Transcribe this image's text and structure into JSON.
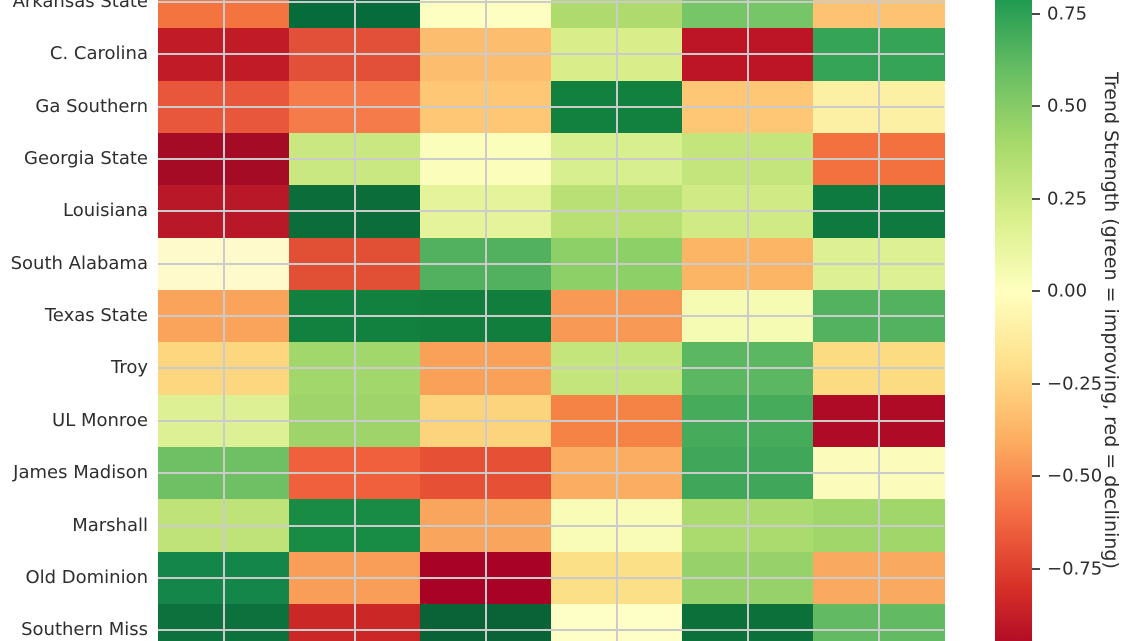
{
  "chart_data": {
    "type": "heatmap",
    "colormap": "RdYlGn",
    "vmin": -1,
    "vmax": 1,
    "rows_visible": [
      "Arkansas State",
      "C. Carolina",
      "Ga Southern",
      "Georgia State",
      "Louisiana",
      "South Alabama",
      "Texas State",
      "Troy",
      "UL Monroe",
      "James Madison",
      "Marshall",
      "Old Dominion",
      "Southern Miss"
    ],
    "n_cols": 6,
    "column_labels_visible": false,
    "values": [
      [
        -0.55,
        0.93,
        0.0,
        0.4,
        0.55,
        -0.28
      ],
      [
        -0.87,
        -0.67,
        -0.32,
        0.2,
        -0.88,
        0.75
      ],
      [
        -0.65,
        -0.52,
        -0.28,
        0.88,
        -0.28,
        -0.07
      ],
      [
        -0.96,
        0.28,
        0.02,
        0.2,
        0.3,
        -0.56
      ],
      [
        -0.88,
        0.93,
        0.12,
        0.36,
        0.24,
        0.9
      ],
      [
        -0.02,
        -0.67,
        0.65,
        0.48,
        -0.35,
        0.17
      ],
      [
        -0.4,
        0.88,
        0.88,
        -0.42,
        0.02,
        0.65
      ],
      [
        -0.18,
        0.42,
        -0.4,
        0.3,
        0.62,
        -0.16
      ],
      [
        0.17,
        0.43,
        -0.2,
        -0.5,
        0.7,
        -0.93
      ],
      [
        0.58,
        -0.6,
        -0.66,
        -0.4,
        0.73,
        0.02
      ],
      [
        0.3,
        0.85,
        -0.4,
        0.02,
        0.4,
        0.43
      ],
      [
        0.85,
        -0.4,
        -0.96,
        -0.15,
        0.45,
        -0.38
      ],
      [
        0.93,
        -0.82,
        0.98,
        0.0,
        0.93,
        0.62
      ]
    ],
    "cell_colors": [
      [
        "#f4743f",
        "#076c3b",
        "#fdfec2",
        "#aeda6e",
        "#76c566",
        "#fdc373"
      ],
      [
        "#c11b27",
        "#e25039",
        "#fcbe6e",
        "#d9ee8a",
        "#bd1526",
        "#35a456"
      ],
      [
        "#e8563b",
        "#f57c4a",
        "#fdc776",
        "#12813f",
        "#fdc776",
        "#fcf0a4"
      ],
      [
        "#a60b26",
        "#c9e881",
        "#fbfdba",
        "#d8ef90",
        "#c3e57c",
        "#f3713f"
      ],
      [
        "#b91828",
        "#0b6e3a",
        "#e5f49b",
        "#b9e074",
        "#d0ea86",
        "#0f7a40"
      ],
      [
        "#fefacb",
        "#e14f35",
        "#52b15f",
        "#8ed068",
        "#fbb564",
        "#ddf094"
      ],
      [
        "#f9a35b",
        "#12813f",
        "#117e3e",
        "#f89a56",
        "#f6fbb4",
        "#52b25f"
      ],
      [
        "#fcd77f",
        "#a2d86b",
        "#f9a159",
        "#c4e57c",
        "#5cb763",
        "#fbdc83"
      ],
      [
        "#ddf194",
        "#9ed46a",
        "#fbd47d",
        "#f58345",
        "#47ab5c",
        "#b00b26"
      ],
      [
        "#6fc065",
        "#f0603c",
        "#e65136",
        "#fbae62",
        "#3fa65a",
        "#fbfcbb"
      ],
      [
        "#c0e379",
        "#188b45",
        "#faa55d",
        "#f8fcb7",
        "#abda6e",
        "#a0d66a"
      ],
      [
        "#15864a",
        "#f99e58",
        "#a80326",
        "#fce088",
        "#97d169",
        "#faaa60"
      ],
      [
        "#0c713c",
        "#cc2727",
        "#0a6336",
        "#fdffc6",
        "#0b7039",
        "#62bb63"
      ]
    ],
    "colorbar": {
      "label": "Trend Strength (green = improving, red = declining)",
      "ticks": [
        "0.75",
        "0.50",
        "0.25",
        "0.00",
        "−0.25",
        "−0.50",
        "−0.75"
      ],
      "tick_values": [
        0.75,
        0.5,
        0.25,
        0.0,
        -0.25,
        -0.5,
        -0.75
      ],
      "gradient_stops": [
        {
          "v": 1.0,
          "color": "#006837"
        },
        {
          "v": 0.8,
          "color": "#1a9850"
        },
        {
          "v": 0.6,
          "color": "#66bd63"
        },
        {
          "v": 0.4,
          "color": "#a6d96a"
        },
        {
          "v": 0.2,
          "color": "#d9ef8b"
        },
        {
          "v": 0.0,
          "color": "#ffffbf"
        },
        {
          "v": -0.2,
          "color": "#fee08b"
        },
        {
          "v": -0.4,
          "color": "#fdae61"
        },
        {
          "v": -0.6,
          "color": "#f46d43"
        },
        {
          "v": -0.8,
          "color": "#d73027"
        },
        {
          "v": -1.0,
          "color": "#a50026"
        }
      ]
    },
    "grid_color": "#cbcbcb",
    "text_color": "#2e2e2e"
  }
}
